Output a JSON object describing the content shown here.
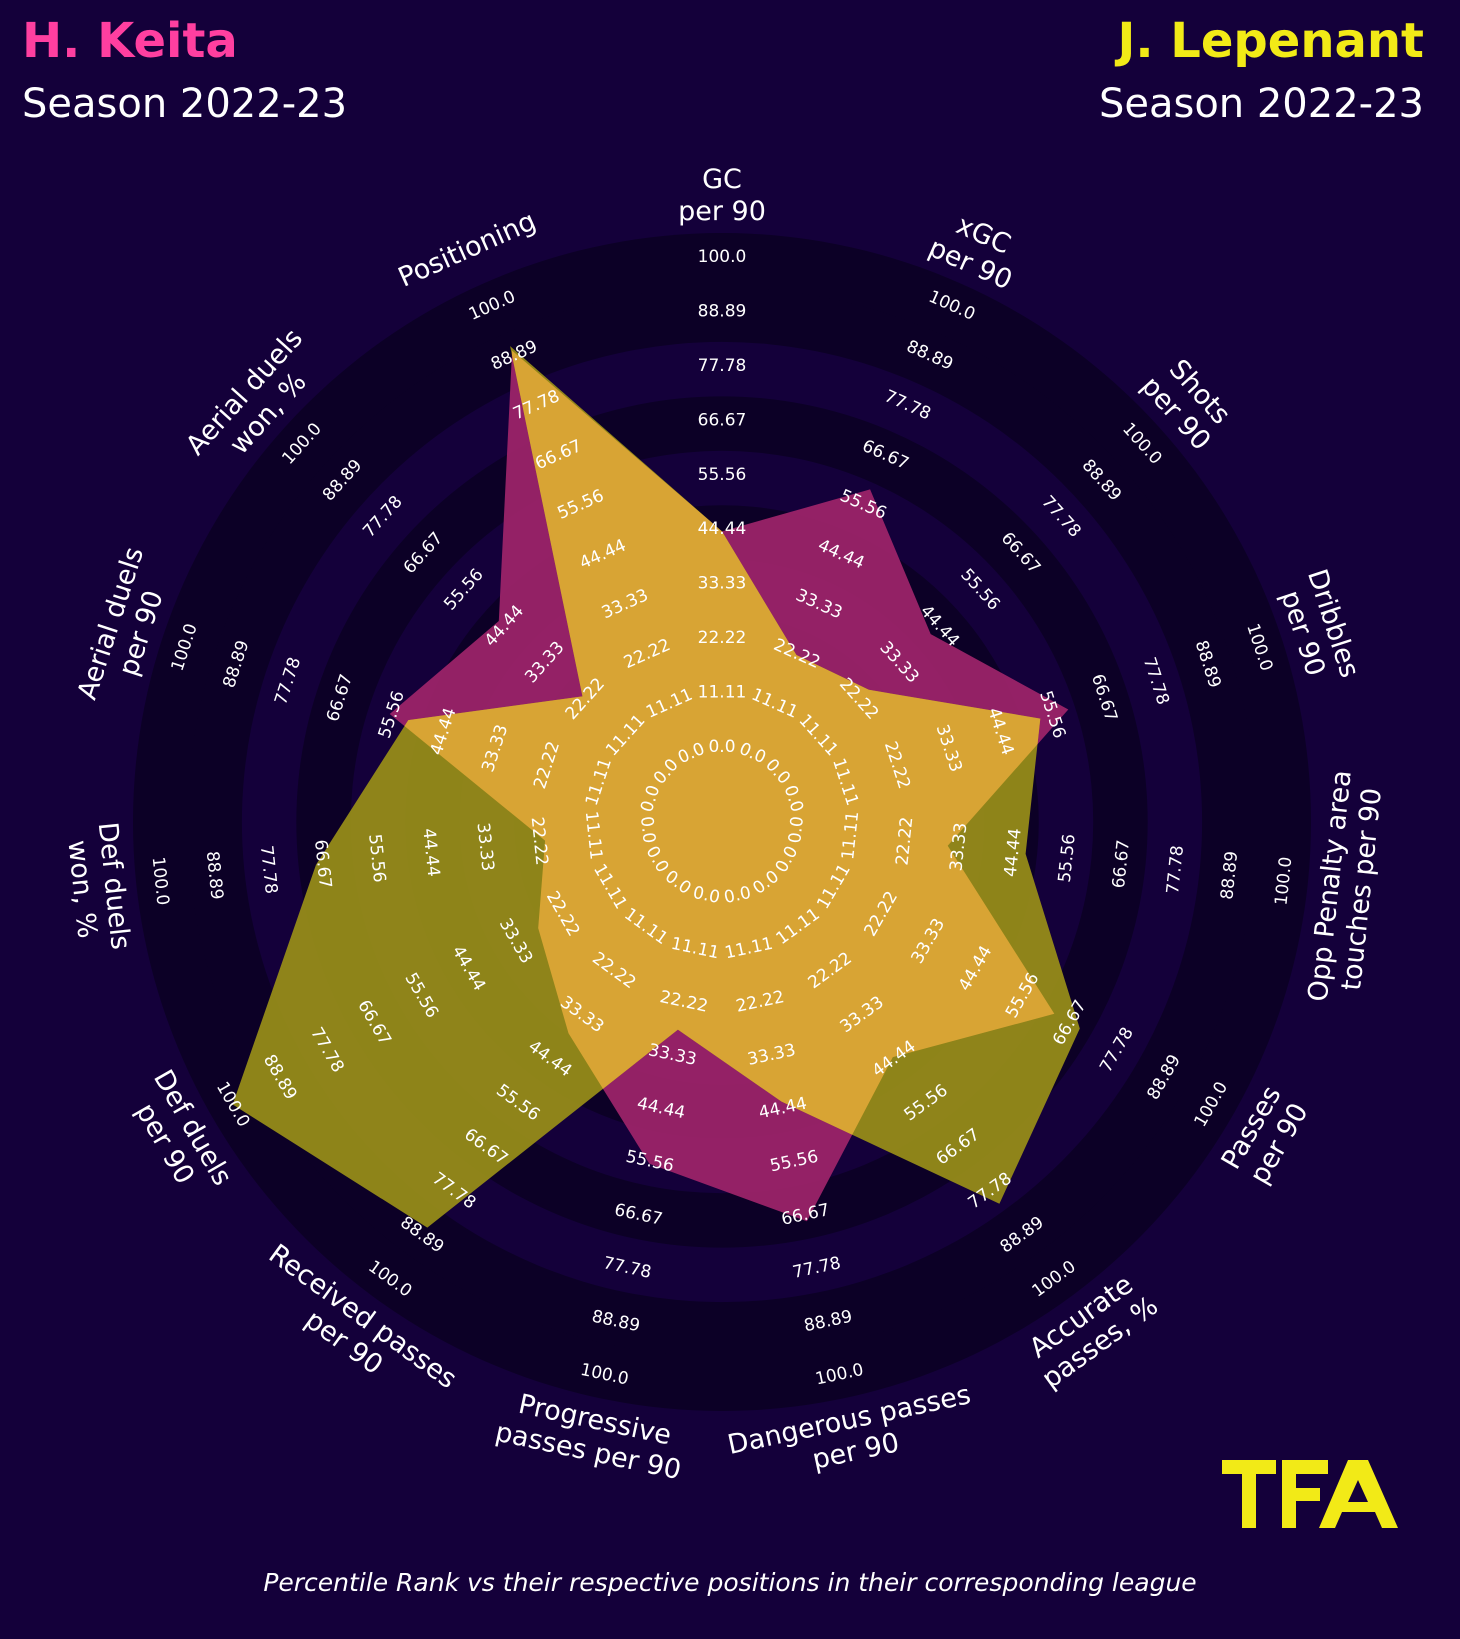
{
  "player_left": {
    "name": "H. Keita",
    "season": "Season 2022-23",
    "color": "#ff3fa0"
  },
  "player_right": {
    "name": "J. Lepenant",
    "season": "Season 2022-23",
    "color": "#f2ea17"
  },
  "footer": "Percentile Rank vs their respective positions in their corresponding league",
  "logo_text": "TFA",
  "chart_data": {
    "type": "radar",
    "categories": [
      "GC\nper 90",
      "xGC\nper 90",
      "Shots\nper 90",
      "Dribbles\nper 90",
      "Opp Penalty area\ntouches per 90",
      "Passes\nper 90",
      "Accurate\npasses, %",
      "Dangerous passes\nper 90",
      "Progressive\npasses per 90",
      "Received passes\nper 90",
      "Def duels\nper 90",
      "Def duels\nwon, %",
      "Aerial duels\nper 90",
      "Aerial duels\nwon, %",
      "Positioning"
    ],
    "tick_labels": [
      "0.0",
      "11.11",
      "22.22",
      "33.33",
      "44.44",
      "55.56",
      "66.67",
      "77.78",
      "88.89",
      "100.0"
    ],
    "range": [
      0,
      100
    ],
    "series": [
      {
        "name": "H. Keita",
        "color": "#a0246a",
        "values": [
          44,
          59,
          42,
          59,
          31,
          63,
          44,
          68,
          56,
          38,
          28,
          21,
          56,
          46,
          90
        ]
      },
      {
        "name": "J. Lepenant",
        "color": "#9a8f18",
        "values": [
          44,
          22,
          25,
          53,
          47,
          69,
          81,
          43,
          28,
          87,
          100,
          68,
          52,
          23,
          91
        ]
      }
    ],
    "overlap_color": "#d8a434"
  }
}
